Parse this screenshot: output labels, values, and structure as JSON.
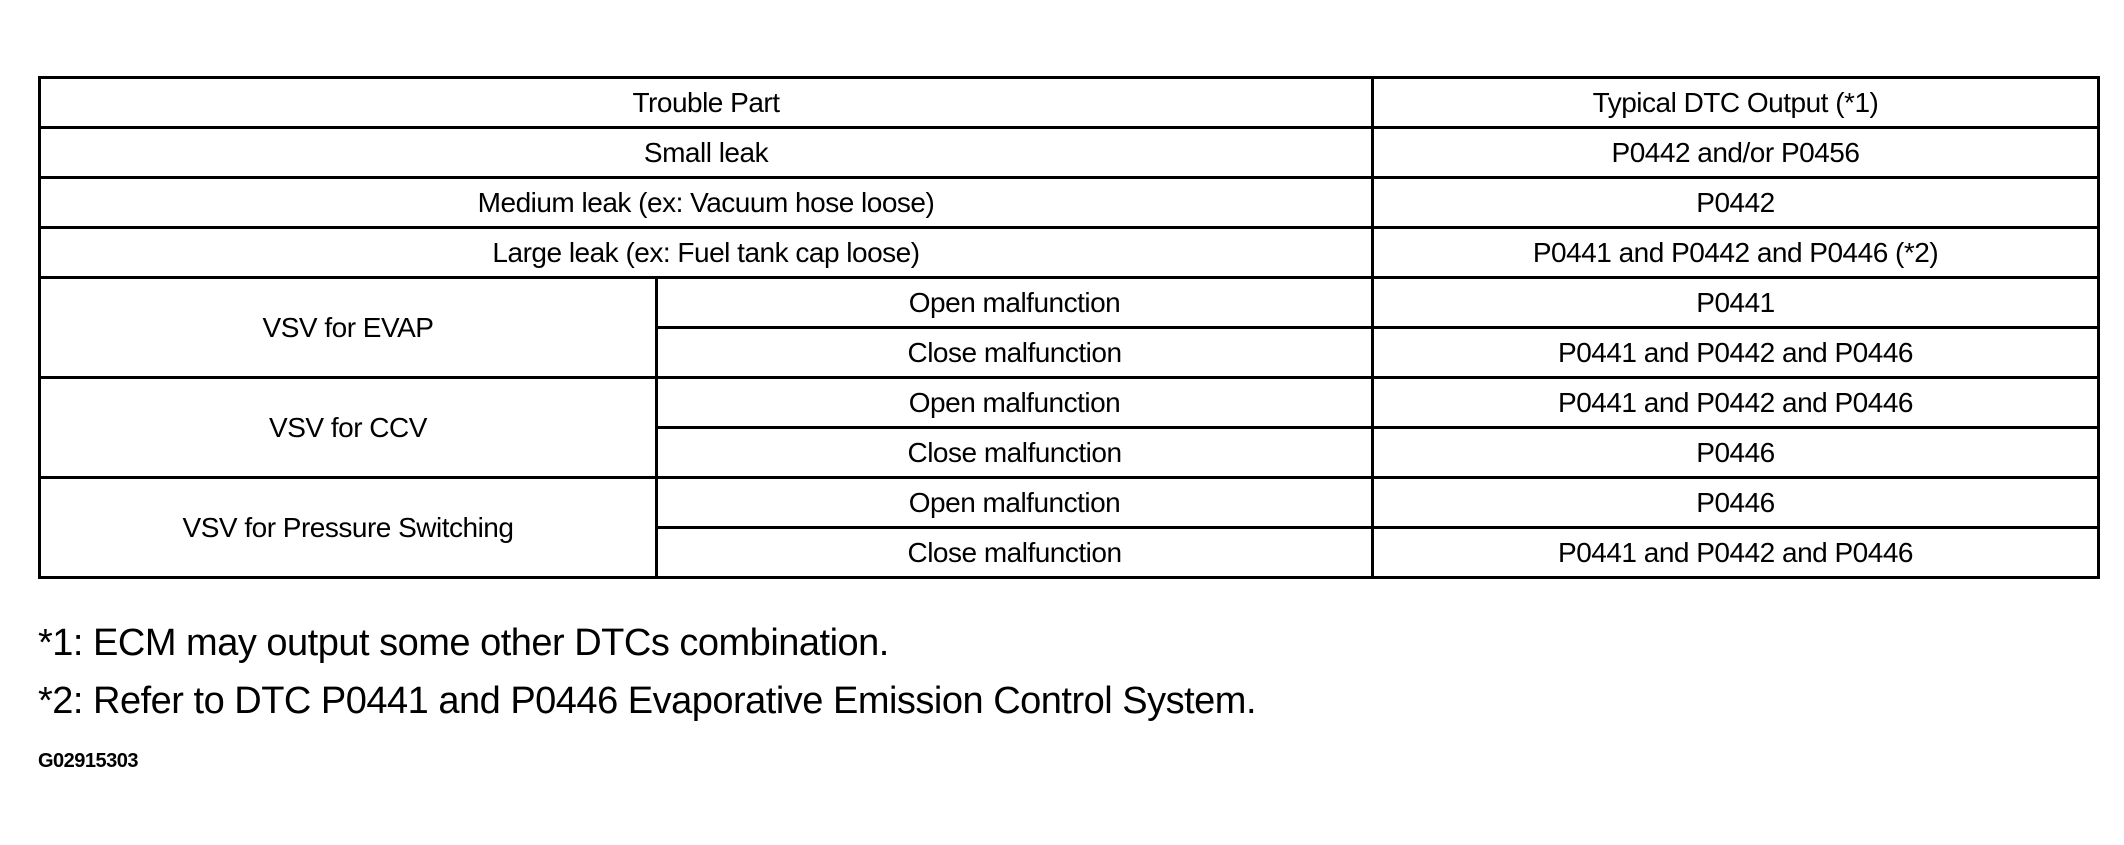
{
  "table": {
    "header": {
      "trouble_part": "Trouble Part",
      "dtc_output": "Typical DTC Output (*1)"
    },
    "simple_rows": [
      {
        "part": "Small leak",
        "dtc": "P0442 and/or P0456"
      },
      {
        "part": "Medium leak (ex: Vacuum hose loose)",
        "dtc": "P0442"
      },
      {
        "part": "Large leak (ex: Fuel tank cap loose)",
        "dtc": "P0441 and P0442 and P0446 (*2)"
      }
    ],
    "groups": [
      {
        "part": "VSV for EVAP",
        "rows": [
          {
            "mode": "Open malfunction",
            "dtc": "P0441"
          },
          {
            "mode": "Close malfunction",
            "dtc": "P0441 and P0442 and P0446"
          }
        ]
      },
      {
        "part": "VSV for CCV",
        "rows": [
          {
            "mode": "Open malfunction",
            "dtc": "P0441 and P0442 and P0446"
          },
          {
            "mode": "Close malfunction",
            "dtc": "P0446"
          }
        ]
      },
      {
        "part": "VSV for Pressure Switching",
        "rows": [
          {
            "mode": "Open malfunction",
            "dtc": "P0446"
          },
          {
            "mode": "Close malfunction",
            "dtc": "P0441 and P0442 and P0446"
          }
        ]
      }
    ]
  },
  "footnotes": [
    "*1: ECM may output some other DTCs combination.",
    "*2: Refer to DTC P0441 and P0446 Evaporative Emission Control System."
  ],
  "figure_code": "G02915303"
}
